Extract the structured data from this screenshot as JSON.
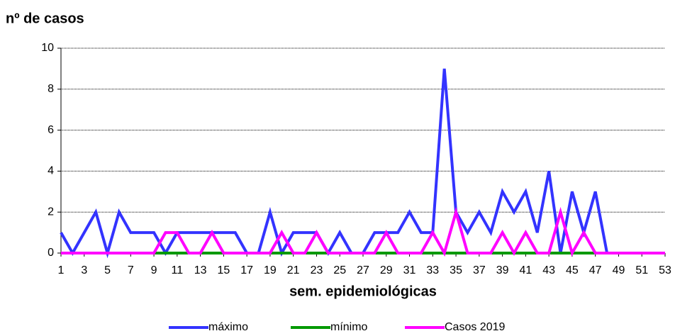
{
  "chart_data": {
    "type": "line",
    "title": "nº de casos",
    "x_label": "sem. epidemiológicas",
    "x": [
      1,
      2,
      3,
      4,
      5,
      6,
      7,
      8,
      9,
      10,
      11,
      12,
      13,
      14,
      15,
      16,
      17,
      18,
      19,
      20,
      21,
      22,
      23,
      24,
      25,
      26,
      27,
      28,
      29,
      30,
      31,
      32,
      33,
      34,
      35,
      36,
      37,
      38,
      39,
      40,
      41,
      42,
      43,
      44,
      45,
      46,
      47,
      48,
      49,
      50,
      51,
      52,
      53
    ],
    "xlim": [
      1,
      53
    ],
    "xticks": [
      1,
      3,
      5,
      7,
      9,
      11,
      13,
      15,
      17,
      19,
      21,
      23,
      25,
      27,
      29,
      31,
      33,
      35,
      37,
      39,
      41,
      43,
      45,
      47,
      49,
      51,
      53
    ],
    "ylim": [
      0,
      10
    ],
    "yticks": [
      0,
      2,
      4,
      6,
      8,
      10
    ],
    "grid": true,
    "series": [
      {
        "name": "máximo",
        "color": "#3333ff",
        "values": [
          1,
          0,
          1,
          2,
          0,
          2,
          1,
          1,
          1,
          0,
          1,
          1,
          1,
          1,
          1,
          1,
          0,
          0,
          2,
          0,
          1,
          1,
          1,
          0,
          1,
          0,
          0,
          1,
          1,
          1,
          2,
          1,
          1,
          9,
          2,
          1,
          2,
          1,
          3,
          2,
          3,
          1,
          4,
          0,
          3,
          1,
          3,
          0,
          0,
          0,
          0,
          0,
          0
        ]
      },
      {
        "name": "mínimo",
        "color": "#009900",
        "values": [
          0,
          0,
          0,
          0,
          0,
          0,
          0,
          0,
          0,
          0,
          0,
          0,
          0,
          0,
          0,
          0,
          0,
          0,
          0,
          0,
          0,
          0,
          0,
          0,
          0,
          0,
          0,
          0,
          0,
          0,
          0,
          0,
          0,
          0,
          0,
          0,
          0,
          0,
          0,
          0,
          0,
          0,
          0,
          0,
          0,
          0,
          0,
          0,
          0,
          0,
          0,
          0,
          0
        ]
      },
      {
        "name": "Casos 2019",
        "color": "#ff00ff",
        "values": [
          0,
          0,
          0,
          0,
          0,
          0,
          0,
          0,
          0,
          1,
          1,
          0,
          0,
          1,
          0,
          0,
          0,
          0,
          0,
          1,
          0,
          0,
          1,
          0,
          0,
          0,
          0,
          0,
          1,
          0,
          0,
          0,
          1,
          0,
          2,
          0,
          0,
          0,
          1,
          0,
          1,
          0,
          0,
          2,
          0,
          1,
          0,
          0,
          0,
          0,
          0,
          0,
          0
        ]
      }
    ]
  }
}
